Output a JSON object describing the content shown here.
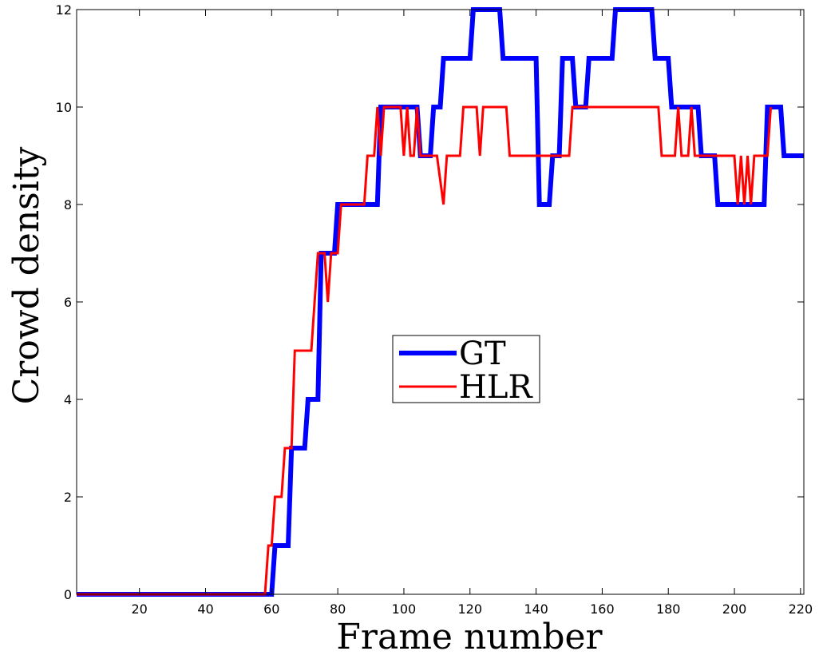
{
  "chart_data": {
    "type": "line",
    "title": "",
    "xlabel": "Frame number",
    "ylabel": "Crowd density",
    "xlim": [
      1,
      221
    ],
    "ylim": [
      0,
      12
    ],
    "x_ticks": [
      20,
      40,
      60,
      80,
      100,
      120,
      140,
      160,
      180,
      200,
      220
    ],
    "y_ticks": [
      0,
      2,
      4,
      6,
      8,
      10,
      12
    ],
    "grid": false,
    "legend_position": "center",
    "series": [
      {
        "name": "GT",
        "color": "#0000ff",
        "points": [
          [
            1,
            0
          ],
          [
            60,
            0
          ],
          [
            61,
            1
          ],
          [
            65,
            1
          ],
          [
            66,
            3
          ],
          [
            70,
            3
          ],
          [
            71,
            4
          ],
          [
            74,
            4
          ],
          [
            75,
            7
          ],
          [
            78,
            7
          ],
          [
            79,
            7
          ],
          [
            80,
            8
          ],
          [
            92,
            8
          ],
          [
            93,
            10
          ],
          [
            104,
            10
          ],
          [
            105,
            9
          ],
          [
            108,
            9
          ],
          [
            109,
            10
          ],
          [
            111,
            10
          ],
          [
            112,
            11
          ],
          [
            120,
            11
          ],
          [
            121,
            12
          ],
          [
            129,
            12
          ],
          [
            130,
            11
          ],
          [
            140,
            11
          ],
          [
            141,
            8
          ],
          [
            144,
            8
          ],
          [
            145,
            9
          ],
          [
            147,
            9
          ],
          [
            148,
            11
          ],
          [
            151,
            11
          ],
          [
            152,
            10
          ],
          [
            155,
            10
          ],
          [
            156,
            11
          ],
          [
            163,
            11
          ],
          [
            164,
            12
          ],
          [
            175,
            12
          ],
          [
            176,
            11
          ],
          [
            180,
            11
          ],
          [
            181,
            10
          ],
          [
            189,
            10
          ],
          [
            190,
            9
          ],
          [
            194,
            9
          ],
          [
            195,
            8
          ],
          [
            209,
            8
          ],
          [
            210,
            10
          ],
          [
            214,
            10
          ],
          [
            215,
            9
          ],
          [
            221,
            9
          ]
        ]
      },
      {
        "name": "HLR",
        "color": "#ff0000",
        "points": [
          [
            1,
            0
          ],
          [
            58,
            0
          ],
          [
            59,
            1
          ],
          [
            60,
            1
          ],
          [
            61,
            2
          ],
          [
            63,
            2
          ],
          [
            64,
            3
          ],
          [
            66,
            3
          ],
          [
            67,
            5
          ],
          [
            72,
            5
          ],
          [
            73,
            6
          ],
          [
            74,
            7
          ],
          [
            76,
            7
          ],
          [
            77,
            6
          ],
          [
            78,
            7
          ],
          [
            80,
            7
          ],
          [
            81,
            8
          ],
          [
            88,
            8
          ],
          [
            89,
            9
          ],
          [
            91,
            9
          ],
          [
            92,
            10
          ],
          [
            93,
            9
          ],
          [
            94,
            10
          ],
          [
            99,
            10
          ],
          [
            100,
            9
          ],
          [
            101,
            10
          ],
          [
            102,
            9
          ],
          [
            103,
            9
          ],
          [
            104,
            10
          ],
          [
            105,
            9
          ],
          [
            106,
            9
          ],
          [
            108,
            9
          ],
          [
            109,
            9
          ],
          [
            110,
            9
          ],
          [
            112,
            8
          ],
          [
            113,
            9
          ],
          [
            117,
            9
          ],
          [
            118,
            10
          ],
          [
            122,
            10
          ],
          [
            123,
            9
          ],
          [
            124,
            10
          ],
          [
            131,
            10
          ],
          [
            132,
            9
          ],
          [
            150,
            9
          ],
          [
            151,
            10
          ],
          [
            177,
            10
          ],
          [
            178,
            9
          ],
          [
            182,
            9
          ],
          [
            183,
            10
          ],
          [
            184,
            9
          ],
          [
            186,
            9
          ],
          [
            187,
            10
          ],
          [
            188,
            9
          ],
          [
            200,
            9
          ],
          [
            201,
            8
          ],
          [
            202,
            9
          ],
          [
            203,
            8
          ],
          [
            204,
            9
          ],
          [
            205,
            8
          ],
          [
            206,
            9
          ],
          [
            207,
            9
          ],
          [
            208,
            9
          ],
          [
            210,
            9
          ],
          [
            211,
            10
          ]
        ]
      }
    ]
  }
}
